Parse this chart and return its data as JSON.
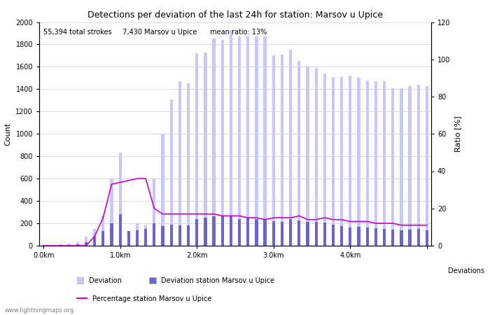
{
  "title": "Detections per deviation of the last 24h for station: Marsov u Upice",
  "annotation": "55,394 total strokes     7,430 Marsov u Upice      mean ratio: 13%",
  "xlabel": "Deviations",
  "ylabel_left": "Count",
  "ylabel_right": "Ratio [%]",
  "ylim_left": [
    0,
    2000
  ],
  "ylim_right": [
    0,
    120
  ],
  "yticks_left": [
    0,
    200,
    400,
    600,
    800,
    1000,
    1200,
    1400,
    1600,
    1800,
    2000
  ],
  "yticks_right": [
    0,
    20,
    40,
    60,
    80,
    100,
    120
  ],
  "xtick_positions": [
    0,
    9,
    18,
    27,
    36,
    45
  ],
  "xtick_labels": [
    "0.0km",
    "1.0km",
    "2.0km",
    "3.0km",
    "4.0km",
    ""
  ],
  "bar_color_light": "#c8c8ff",
  "bar_color_dark": "#6666cc",
  "line_color": "#cc00cc",
  "background_color": "#ffffff",
  "grid_color": "#cccccc",
  "deviation_total": [
    5,
    8,
    12,
    20,
    30,
    80,
    150,
    270,
    600,
    830,
    130,
    200,
    180,
    600,
    1000,
    1310,
    1470,
    1450,
    1720,
    1730,
    1850,
    1840,
    1930,
    1870,
    1870,
    1870,
    1870,
    1700,
    1710,
    1750,
    1650,
    1600,
    1590,
    1540,
    1510,
    1510,
    1520,
    1500,
    1480,
    1470,
    1470,
    1410,
    1410,
    1430,
    1440,
    1430
  ],
  "deviation_station": [
    2,
    3,
    5,
    5,
    10,
    30,
    80,
    130,
    200,
    280,
    130,
    140,
    150,
    200,
    175,
    185,
    180,
    180,
    240,
    250,
    265,
    260,
    265,
    240,
    250,
    235,
    235,
    220,
    210,
    235,
    225,
    210,
    210,
    205,
    185,
    175,
    165,
    170,
    165,
    155,
    150,
    145,
    135,
    145,
    150,
    135
  ],
  "ratio": [
    0,
    0,
    0,
    0,
    0,
    0,
    5,
    15,
    33,
    34,
    35,
    36,
    36,
    20,
    17,
    17,
    17,
    17,
    17,
    17,
    17,
    16,
    16,
    16,
    15,
    15,
    14,
    15,
    15,
    15,
    16,
    14,
    14,
    15,
    14,
    14,
    13,
    13,
    13,
    12,
    12,
    12,
    11,
    11,
    11,
    11
  ],
  "legend_items": [
    {
      "type": "patch",
      "color": "#c8c8ff",
      "label": "Deviation"
    },
    {
      "type": "patch",
      "color": "#6666cc",
      "label": "Deviation station Marsov u Upice"
    },
    {
      "type": "line",
      "color": "#cc00cc",
      "label": "Percentage station Marsov u Upice"
    }
  ],
  "watermark": "www.lightningmaps.org"
}
